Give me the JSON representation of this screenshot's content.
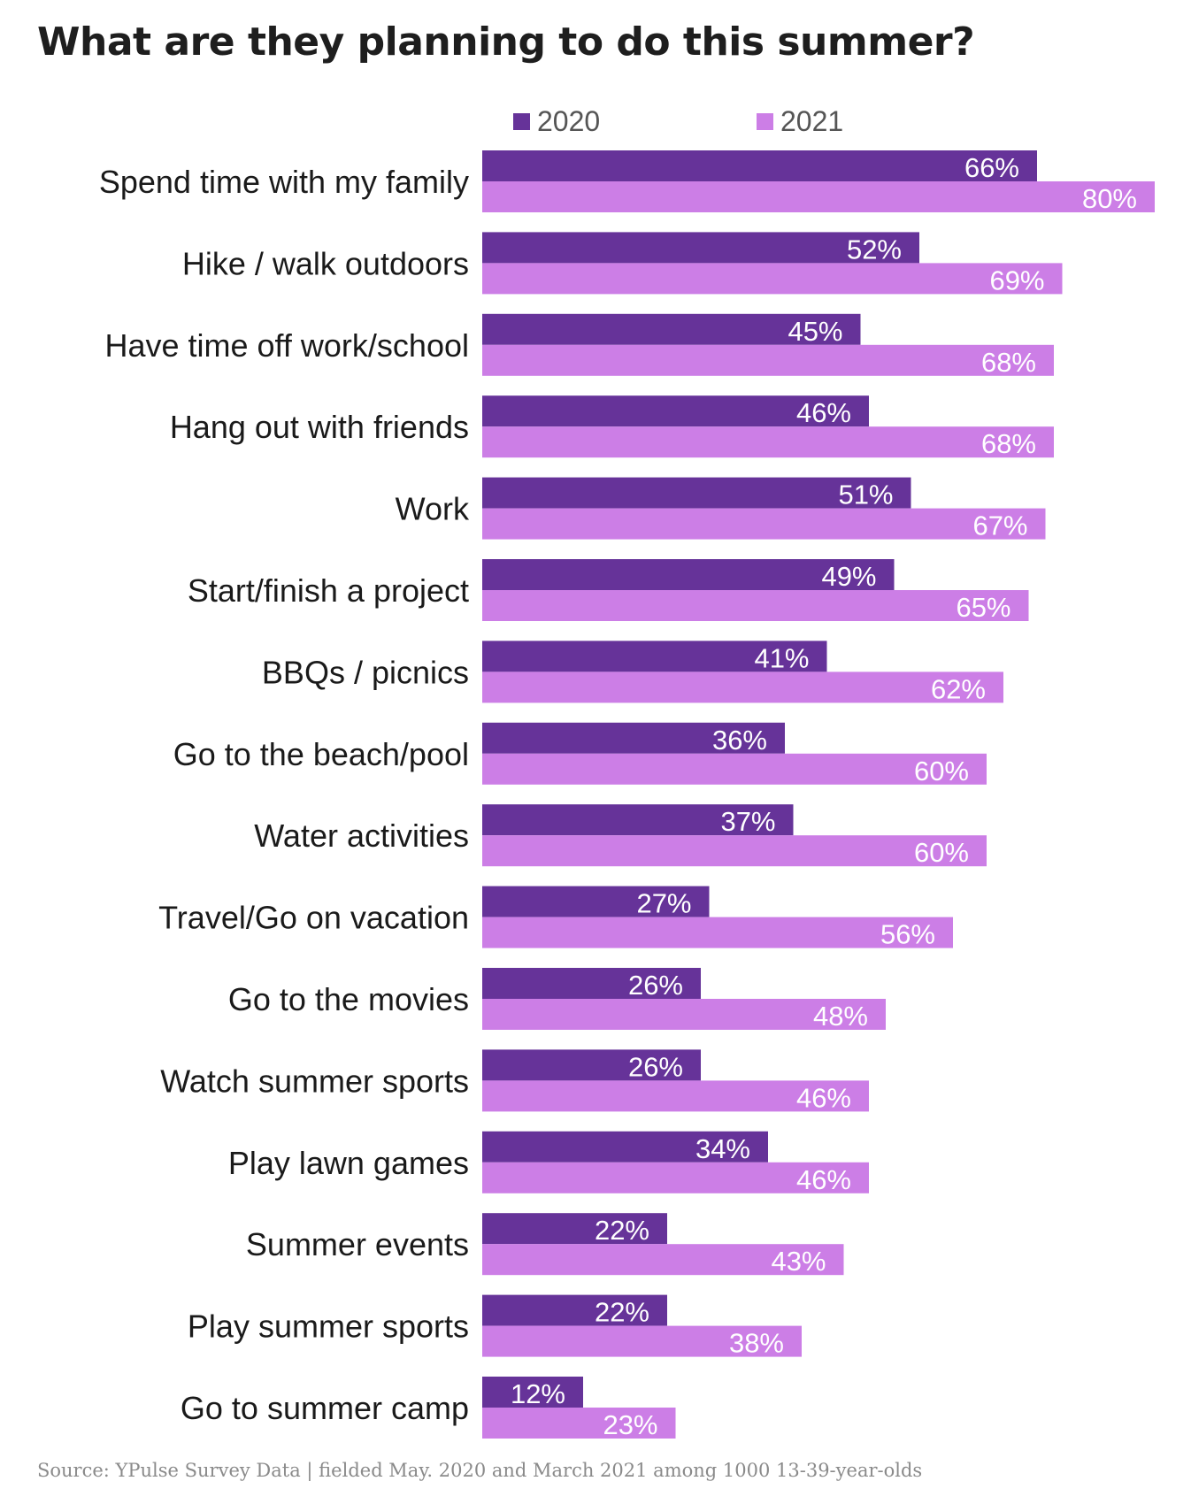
{
  "title": "What are they planning to do this summer?",
  "source": "Source: YPulse Survey Data | fielded May. 2020 and March 2021 among 1000 13-39-year-olds",
  "colors": {
    "2020": "#663399",
    "2021": "#cc7ee6"
  },
  "chart_data": {
    "type": "bar",
    "orientation": "horizontal",
    "title": "What are they planning to do this summer?",
    "legend_position": "top",
    "grid": false,
    "xlim": [
      0,
      80
    ],
    "value_suffix": "%",
    "categories": [
      "Spend time with my family",
      "Hike / walk outdoors",
      "Have time off work/school",
      "Hang out with friends",
      "Work",
      "Start/finish a project",
      "BBQs / picnics",
      "Go to the beach/pool",
      "Water activities",
      "Travel/Go on vacation",
      "Go to the movies",
      "Watch summer sports",
      "Play lawn games",
      "Summer events",
      "Play summer sports",
      "Go to summer camp"
    ],
    "series": [
      {
        "name": "2020",
        "values": [
          66,
          52,
          45,
          46,
          51,
          49,
          41,
          36,
          37,
          27,
          26,
          26,
          34,
          22,
          22,
          12
        ]
      },
      {
        "name": "2021",
        "values": [
          80,
          69,
          68,
          68,
          67,
          65,
          62,
          60,
          60,
          56,
          48,
          46,
          46,
          43,
          38,
          23
        ]
      }
    ]
  }
}
